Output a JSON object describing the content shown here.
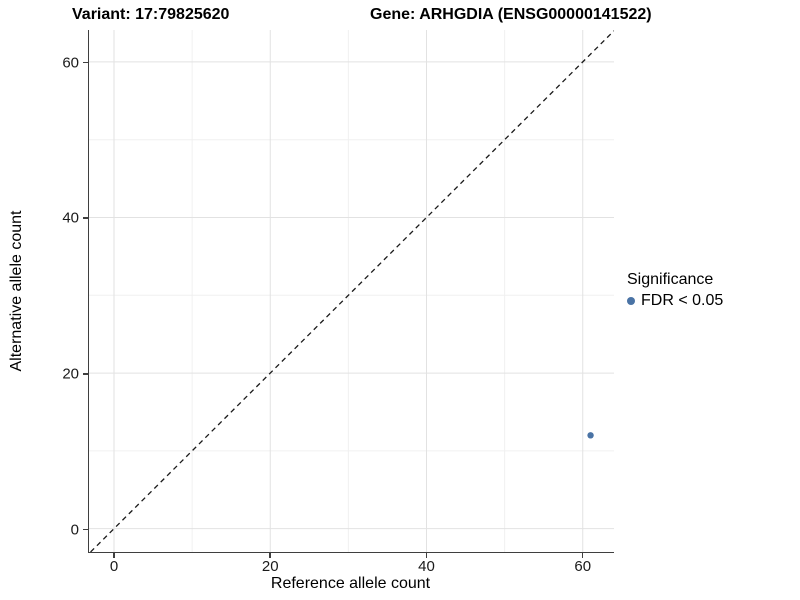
{
  "titles": {
    "variant": "Variant: 17:79825620",
    "gene": "Gene: ARHGDIA (ENSG00000141522)"
  },
  "axes": {
    "x": {
      "label": "Reference allele count"
    },
    "y": {
      "label": "Alternative allele count"
    }
  },
  "legend": {
    "title": "Significance",
    "items": [
      {
        "label": "FDR < 0.05",
        "color": "#4a73a5"
      }
    ]
  },
  "colors": {
    "point": "#4a73a5",
    "grid_major": "#e2e2e2",
    "grid_minor": "#f0f0f0",
    "axis_line": "#3f3f3f",
    "identity_line": "#1a1a1a",
    "background": "#ffffff"
  },
  "chart_data": {
    "type": "scatter",
    "title": "Variant: 17:79825620 | Gene: ARHGDIA (ENSG00000141522)",
    "xlabel": "Reference allele count",
    "ylabel": "Alternative allele count",
    "xlim": [
      -3.2,
      64.0
    ],
    "ylim": [
      -3.0,
      64.1
    ],
    "x_ticks": [
      0,
      20,
      40,
      60
    ],
    "y_ticks": [
      0,
      20,
      40,
      60
    ],
    "x_minor_ticks": [
      10,
      30,
      50
    ],
    "y_minor_ticks": [
      10,
      30,
      50
    ],
    "grid": true,
    "legend_position": "right",
    "series": [
      {
        "name": "FDR < 0.05",
        "color": "#4a73a5",
        "points": [
          {
            "x": 61,
            "y": 12
          }
        ],
        "point_radius_px": 3.2
      }
    ],
    "reference_line": {
      "type": "identity",
      "slope": 1,
      "intercept": 0,
      "style": "dashed",
      "color": "#1a1a1a"
    }
  }
}
